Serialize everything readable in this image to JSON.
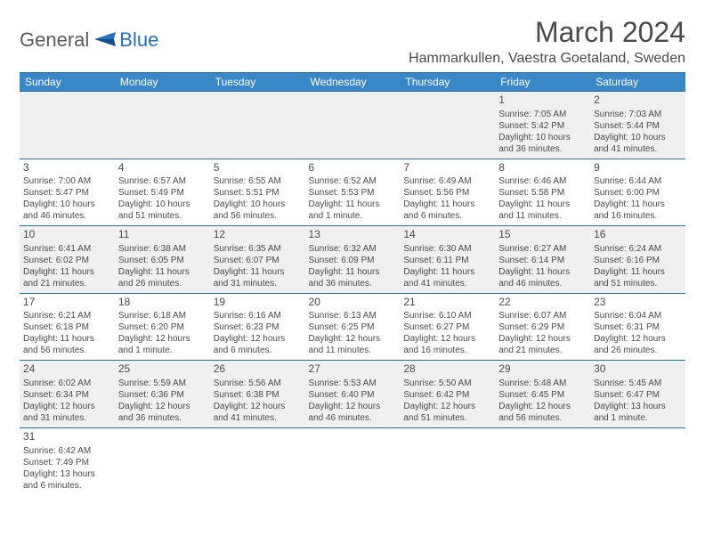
{
  "logo": {
    "general": "General",
    "blue": "Blue"
  },
  "title": "March 2024",
  "location": "Hammarkullen, Vaestra Goetaland, Sweden",
  "colors": {
    "header_bg": "#3a87c8",
    "border": "#2a6db8",
    "alt_row": "#f0f0f0",
    "text": "#4a4a4a"
  },
  "day_headers": [
    "Sunday",
    "Monday",
    "Tuesday",
    "Wednesday",
    "Thursday",
    "Friday",
    "Saturday"
  ],
  "weeks": [
    [
      null,
      null,
      null,
      null,
      null,
      {
        "n": "1",
        "sr": "Sunrise: 7:05 AM",
        "ss": "Sunset: 5:42 PM",
        "d1": "Daylight: 10 hours",
        "d2": "and 36 minutes."
      },
      {
        "n": "2",
        "sr": "Sunrise: 7:03 AM",
        "ss": "Sunset: 5:44 PM",
        "d1": "Daylight: 10 hours",
        "d2": "and 41 minutes."
      }
    ],
    [
      {
        "n": "3",
        "sr": "Sunrise: 7:00 AM",
        "ss": "Sunset: 5:47 PM",
        "d1": "Daylight: 10 hours",
        "d2": "and 46 minutes."
      },
      {
        "n": "4",
        "sr": "Sunrise: 6:57 AM",
        "ss": "Sunset: 5:49 PM",
        "d1": "Daylight: 10 hours",
        "d2": "and 51 minutes."
      },
      {
        "n": "5",
        "sr": "Sunrise: 6:55 AM",
        "ss": "Sunset: 5:51 PM",
        "d1": "Daylight: 10 hours",
        "d2": "and 56 minutes."
      },
      {
        "n": "6",
        "sr": "Sunrise: 6:52 AM",
        "ss": "Sunset: 5:53 PM",
        "d1": "Daylight: 11 hours",
        "d2": "and 1 minute."
      },
      {
        "n": "7",
        "sr": "Sunrise: 6:49 AM",
        "ss": "Sunset: 5:56 PM",
        "d1": "Daylight: 11 hours",
        "d2": "and 6 minutes."
      },
      {
        "n": "8",
        "sr": "Sunrise: 6:46 AM",
        "ss": "Sunset: 5:58 PM",
        "d1": "Daylight: 11 hours",
        "d2": "and 11 minutes."
      },
      {
        "n": "9",
        "sr": "Sunrise: 6:44 AM",
        "ss": "Sunset: 6:00 PM",
        "d1": "Daylight: 11 hours",
        "d2": "and 16 minutes."
      }
    ],
    [
      {
        "n": "10",
        "sr": "Sunrise: 6:41 AM",
        "ss": "Sunset: 6:02 PM",
        "d1": "Daylight: 11 hours",
        "d2": "and 21 minutes."
      },
      {
        "n": "11",
        "sr": "Sunrise: 6:38 AM",
        "ss": "Sunset: 6:05 PM",
        "d1": "Daylight: 11 hours",
        "d2": "and 26 minutes."
      },
      {
        "n": "12",
        "sr": "Sunrise: 6:35 AM",
        "ss": "Sunset: 6:07 PM",
        "d1": "Daylight: 11 hours",
        "d2": "and 31 minutes."
      },
      {
        "n": "13",
        "sr": "Sunrise: 6:32 AM",
        "ss": "Sunset: 6:09 PM",
        "d1": "Daylight: 11 hours",
        "d2": "and 36 minutes."
      },
      {
        "n": "14",
        "sr": "Sunrise: 6:30 AM",
        "ss": "Sunset: 6:11 PM",
        "d1": "Daylight: 11 hours",
        "d2": "and 41 minutes."
      },
      {
        "n": "15",
        "sr": "Sunrise: 6:27 AM",
        "ss": "Sunset: 6:14 PM",
        "d1": "Daylight: 11 hours",
        "d2": "and 46 minutes."
      },
      {
        "n": "16",
        "sr": "Sunrise: 6:24 AM",
        "ss": "Sunset: 6:16 PM",
        "d1": "Daylight: 11 hours",
        "d2": "and 51 minutes."
      }
    ],
    [
      {
        "n": "17",
        "sr": "Sunrise: 6:21 AM",
        "ss": "Sunset: 6:18 PM",
        "d1": "Daylight: 11 hours",
        "d2": "and 56 minutes."
      },
      {
        "n": "18",
        "sr": "Sunrise: 6:18 AM",
        "ss": "Sunset: 6:20 PM",
        "d1": "Daylight: 12 hours",
        "d2": "and 1 minute."
      },
      {
        "n": "19",
        "sr": "Sunrise: 6:16 AM",
        "ss": "Sunset: 6:23 PM",
        "d1": "Daylight: 12 hours",
        "d2": "and 6 minutes."
      },
      {
        "n": "20",
        "sr": "Sunrise: 6:13 AM",
        "ss": "Sunset: 6:25 PM",
        "d1": "Daylight: 12 hours",
        "d2": "and 11 minutes."
      },
      {
        "n": "21",
        "sr": "Sunrise: 6:10 AM",
        "ss": "Sunset: 6:27 PM",
        "d1": "Daylight: 12 hours",
        "d2": "and 16 minutes."
      },
      {
        "n": "22",
        "sr": "Sunrise: 6:07 AM",
        "ss": "Sunset: 6:29 PM",
        "d1": "Daylight: 12 hours",
        "d2": "and 21 minutes."
      },
      {
        "n": "23",
        "sr": "Sunrise: 6:04 AM",
        "ss": "Sunset: 6:31 PM",
        "d1": "Daylight: 12 hours",
        "d2": "and 26 minutes."
      }
    ],
    [
      {
        "n": "24",
        "sr": "Sunrise: 6:02 AM",
        "ss": "Sunset: 6:34 PM",
        "d1": "Daylight: 12 hours",
        "d2": "and 31 minutes."
      },
      {
        "n": "25",
        "sr": "Sunrise: 5:59 AM",
        "ss": "Sunset: 6:36 PM",
        "d1": "Daylight: 12 hours",
        "d2": "and 36 minutes."
      },
      {
        "n": "26",
        "sr": "Sunrise: 5:56 AM",
        "ss": "Sunset: 6:38 PM",
        "d1": "Daylight: 12 hours",
        "d2": "and 41 minutes."
      },
      {
        "n": "27",
        "sr": "Sunrise: 5:53 AM",
        "ss": "Sunset: 6:40 PM",
        "d1": "Daylight: 12 hours",
        "d2": "and 46 minutes."
      },
      {
        "n": "28",
        "sr": "Sunrise: 5:50 AM",
        "ss": "Sunset: 6:42 PM",
        "d1": "Daylight: 12 hours",
        "d2": "and 51 minutes."
      },
      {
        "n": "29",
        "sr": "Sunrise: 5:48 AM",
        "ss": "Sunset: 6:45 PM",
        "d1": "Daylight: 12 hours",
        "d2": "and 56 minutes."
      },
      {
        "n": "30",
        "sr": "Sunrise: 5:45 AM",
        "ss": "Sunset: 6:47 PM",
        "d1": "Daylight: 13 hours",
        "d2": "and 1 minute."
      }
    ],
    [
      {
        "n": "31",
        "sr": "Sunrise: 6:42 AM",
        "ss": "Sunset: 7:49 PM",
        "d1": "Daylight: 13 hours",
        "d2": "and 6 minutes."
      },
      null,
      null,
      null,
      null,
      null,
      null
    ]
  ]
}
